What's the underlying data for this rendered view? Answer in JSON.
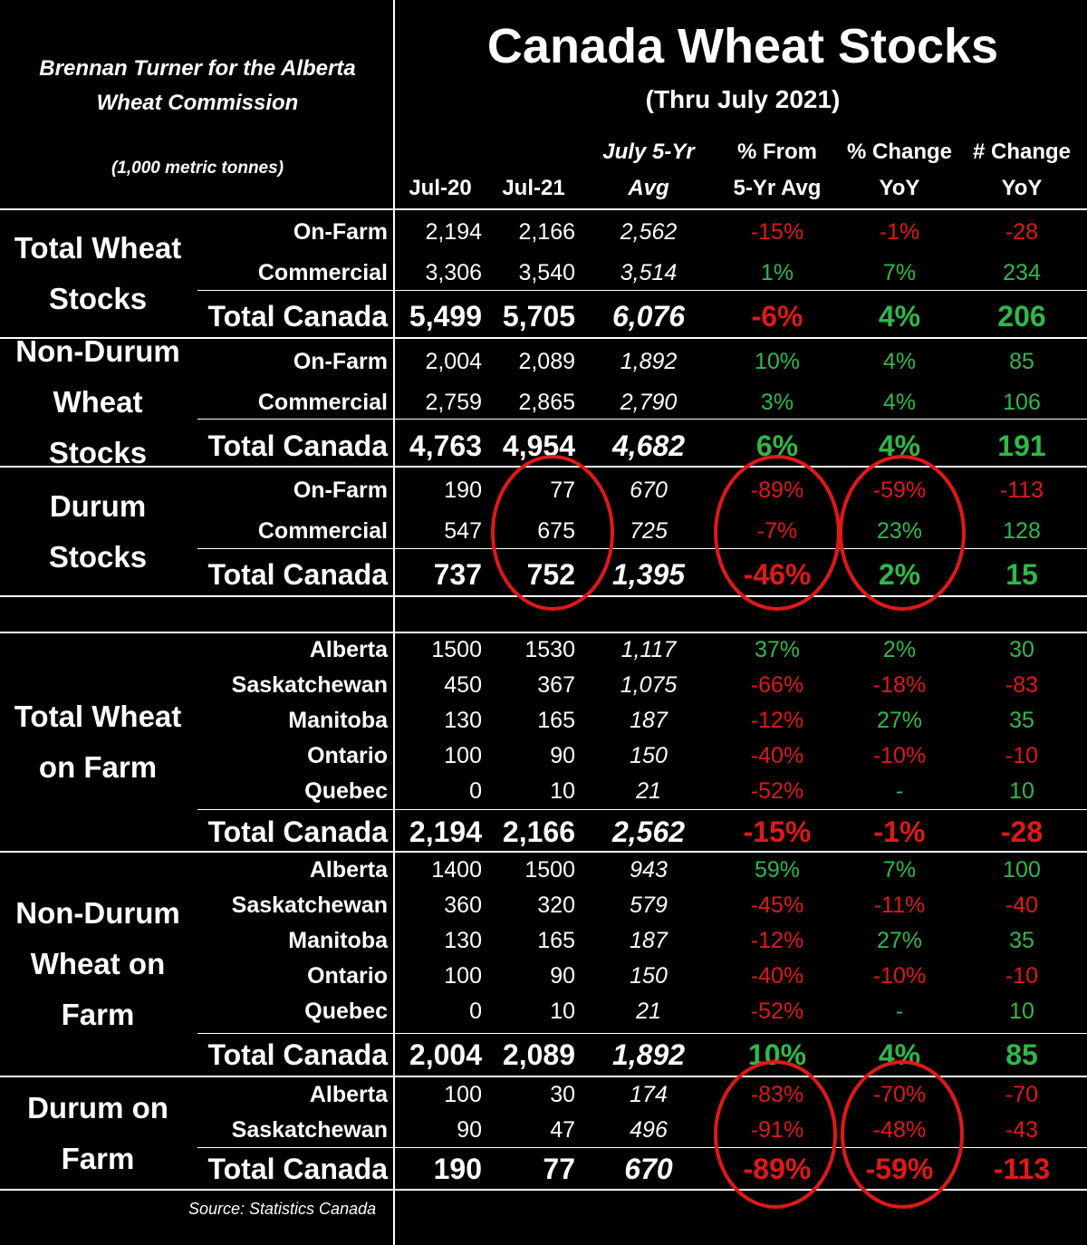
{
  "header": {
    "credit": "Brennan Turner for the Alberta Wheat Commission",
    "credit_line1": "Brennan Turner for the Alberta",
    "credit_line2": "Wheat Commission",
    "units": "(1,000 metric tonnes)",
    "title": "Canada Wheat Stocks",
    "subtitle": "(Thru July 2021)"
  },
  "columns": [
    {
      "l1": "",
      "l2": "Jul-20"
    },
    {
      "l1": "",
      "l2": "Jul-21"
    },
    {
      "l1": "July 5-Yr",
      "l2": "Avg"
    },
    {
      "l1": "% From",
      "l2": "5-Yr Avg"
    },
    {
      "l1": "% Change",
      "l2": "YoY"
    },
    {
      "l1": "# Change",
      "l2": "YoY"
    }
  ],
  "source": "Source: Statistics Canada",
  "colors": {
    "negative": "#e01818",
    "positive": "#2fb84a",
    "circle": "#e01818"
  },
  "chart_data": {
    "type": "table",
    "title": "Canada Wheat Stocks",
    "subtitle": "(Thru July 2021)",
    "units": "(1,000 metric tonnes)",
    "sections": [
      {
        "name": "Total Wheat Stocks",
        "rows": [
          {
            "label": "On-Farm",
            "jul20": "2,194",
            "jul21": "2,166",
            "avg": "2,562",
            "pct_avg": "-15%",
            "pct_yoy": "-1%",
            "num_yoy": "-28"
          },
          {
            "label": "Commercial",
            "jul20": "3,306",
            "jul21": "3,540",
            "avg": "3,514",
            "pct_avg": "1%",
            "pct_yoy": "7%",
            "num_yoy": "234"
          },
          {
            "label": "Total Canada",
            "total": true,
            "jul20": "5,499",
            "jul21": "5,705",
            "avg": "6,076",
            "pct_avg": "-6%",
            "pct_yoy": "4%",
            "num_yoy": "206"
          }
        ]
      },
      {
        "name": "Non-Durum Wheat Stocks",
        "rows": [
          {
            "label": "On-Farm",
            "jul20": "2,004",
            "jul21": "2,089",
            "avg": "1,892",
            "pct_avg": "10%",
            "pct_yoy": "4%",
            "num_yoy": "85"
          },
          {
            "label": "Commercial",
            "jul20": "2,759",
            "jul21": "2,865",
            "avg": "2,790",
            "pct_avg": "3%",
            "pct_yoy": "4%",
            "num_yoy": "106"
          },
          {
            "label": "Total Canada",
            "total": true,
            "jul20": "4,763",
            "jul21": "4,954",
            "avg": "4,682",
            "pct_avg": "6%",
            "pct_yoy": "4%",
            "num_yoy": "191"
          }
        ]
      },
      {
        "name": "Durum Stocks",
        "rows": [
          {
            "label": "On-Farm",
            "jul20": "190",
            "jul21": "77",
            "avg": "670",
            "pct_avg": "-89%",
            "pct_yoy": "-59%",
            "num_yoy": "-113"
          },
          {
            "label": "Commercial",
            "jul20": "547",
            "jul21": "675",
            "avg": "725",
            "pct_avg": "-7%",
            "pct_yoy": "23%",
            "num_yoy": "128"
          },
          {
            "label": "Total Canada",
            "total": true,
            "jul20": "737",
            "jul21": "752",
            "avg": "1,395",
            "pct_avg": "-46%",
            "pct_yoy": "2%",
            "num_yoy": "15"
          }
        ]
      },
      {
        "name": "Total Wheat on Farm",
        "rows": [
          {
            "label": "Alberta",
            "jul20": "1500",
            "jul21": "1530",
            "avg": "1,117",
            "pct_avg": "37%",
            "pct_yoy": "2%",
            "num_yoy": "30"
          },
          {
            "label": "Saskatchewan",
            "jul20": "450",
            "jul21": "367",
            "avg": "1,075",
            "pct_avg": "-66%",
            "pct_yoy": "-18%",
            "num_yoy": "-83"
          },
          {
            "label": "Manitoba",
            "jul20": "130",
            "jul21": "165",
            "avg": "187",
            "pct_avg": "-12%",
            "pct_yoy": "27%",
            "num_yoy": "35"
          },
          {
            "label": "Ontario",
            "jul20": "100",
            "jul21": "90",
            "avg": "150",
            "pct_avg": "-40%",
            "pct_yoy": "-10%",
            "num_yoy": "-10"
          },
          {
            "label": "Quebec",
            "jul20": "0",
            "jul21": "10",
            "avg": "21",
            "pct_avg": "-52%",
            "pct_yoy": "-",
            "num_yoy": "10"
          },
          {
            "label": "Total Canada",
            "total": true,
            "jul20": "2,194",
            "jul21": "2,166",
            "avg": "2,562",
            "pct_avg": "-15%",
            "pct_yoy": "-1%",
            "num_yoy": "-28"
          }
        ]
      },
      {
        "name": "Non-Durum Wheat on Farm",
        "rows": [
          {
            "label": "Alberta",
            "jul20": "1400",
            "jul21": "1500",
            "avg": "943",
            "pct_avg": "59%",
            "pct_yoy": "7%",
            "num_yoy": "100"
          },
          {
            "label": "Saskatchewan",
            "jul20": "360",
            "jul21": "320",
            "avg": "579",
            "pct_avg": "-45%",
            "pct_yoy": "-11%",
            "num_yoy": "-40"
          },
          {
            "label": "Manitoba",
            "jul20": "130",
            "jul21": "165",
            "avg": "187",
            "pct_avg": "-12%",
            "pct_yoy": "27%",
            "num_yoy": "35"
          },
          {
            "label": "Ontario",
            "jul20": "100",
            "jul21": "90",
            "avg": "150",
            "pct_avg": "-40%",
            "pct_yoy": "-10%",
            "num_yoy": "-10"
          },
          {
            "label": "Quebec",
            "jul20": "0",
            "jul21": "10",
            "avg": "21",
            "pct_avg": "-52%",
            "pct_yoy": "-",
            "num_yoy": "10"
          },
          {
            "label": "Total Canada",
            "total": true,
            "jul20": "2,004",
            "jul21": "2,089",
            "avg": "1,892",
            "pct_avg": "10%",
            "pct_yoy": "4%",
            "num_yoy": "85"
          }
        ]
      },
      {
        "name": "Durum on Farm",
        "rows": [
          {
            "label": "Alberta",
            "jul20": "100",
            "jul21": "30",
            "avg": "174",
            "pct_avg": "-83%",
            "pct_yoy": "-70%",
            "num_yoy": "-70"
          },
          {
            "label": "Saskatchewan",
            "jul20": "90",
            "jul21": "47",
            "avg": "496",
            "pct_avg": "-91%",
            "pct_yoy": "-48%",
            "num_yoy": "-43"
          },
          {
            "label": "Total Canada",
            "total": true,
            "jul20": "190",
            "jul21": "77",
            "avg": "670",
            "pct_avg": "-89%",
            "pct_yoy": "-59%",
            "num_yoy": "-113"
          }
        ]
      }
    ]
  }
}
